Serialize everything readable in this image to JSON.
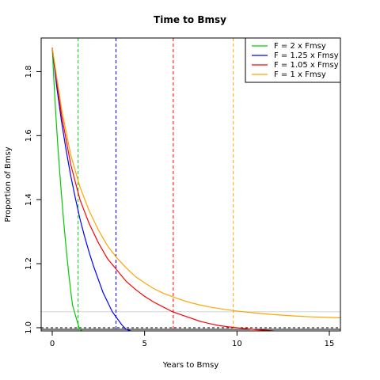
{
  "chart_data": {
    "type": "line",
    "title": "Time to Bmsy",
    "xlabel": "Years to Bmsy",
    "ylabel": "Proportion of Bmsy",
    "xlim": [
      -0.6,
      15.6
    ],
    "ylim": [
      0.99,
      1.905
    ],
    "x_ticks": [
      0,
      5,
      10,
      15
    ],
    "y_ticks": [
      1.0,
      1.2,
      1.4,
      1.6,
      1.8
    ],
    "x_tick_labels": [
      "0",
      "5",
      "10",
      "15"
    ],
    "y_tick_labels": [
      "1.0",
      "1.2",
      "1.4",
      "1.6",
      "1.8"
    ],
    "grid": false,
    "legend_position": "top-right",
    "series": [
      {
        "name": "F = 2 x Fmsy",
        "color": "#00cc00",
        "x": [
          0,
          0.1,
          0.2,
          0.3,
          0.4,
          0.5,
          0.6,
          0.7,
          0.8,
          0.9,
          1.0,
          1.1,
          1.2,
          1.3,
          1.4,
          1.5,
          1.6
        ],
        "y": [
          1.875,
          1.76,
          1.66,
          1.57,
          1.49,
          1.415,
          1.345,
          1.28,
          1.22,
          1.165,
          1.115,
          1.07,
          1.05,
          1.03,
          1.01,
          0.995,
          0.99
        ]
      },
      {
        "name": "F = 1.25 x Fmsy",
        "color": "#0000ff",
        "x": [
          0,
          0.25,
          0.5,
          0.75,
          1.0,
          1.25,
          1.5,
          1.75,
          2.0,
          2.25,
          2.5,
          2.75,
          3.0,
          3.25,
          3.5,
          3.75,
          4.0,
          4.25
        ],
        "y": [
          1.875,
          1.75,
          1.645,
          1.555,
          1.475,
          1.405,
          1.34,
          1.285,
          1.235,
          1.19,
          1.15,
          1.11,
          1.08,
          1.05,
          1.03,
          1.01,
          0.995,
          0.99
        ]
      },
      {
        "name": "F = 1.05 x Fmsy",
        "color": "#ff0000",
        "x": [
          0,
          0.5,
          1,
          1.5,
          2,
          2.5,
          3,
          3.5,
          4,
          4.5,
          5,
          5.5,
          6,
          6.5,
          7,
          7.5,
          8,
          8.5,
          9,
          9.5,
          10,
          10.5,
          11,
          11.5,
          12
        ],
        "y": [
          1.875,
          1.665,
          1.51,
          1.4,
          1.325,
          1.265,
          1.215,
          1.18,
          1.145,
          1.12,
          1.098,
          1.08,
          1.065,
          1.05,
          1.04,
          1.03,
          1.02,
          1.013,
          1.007,
          1.003,
          1.0,
          0.997,
          0.994,
          0.992,
          0.99
        ]
      },
      {
        "name": "F = 1 x Fmsy",
        "color": "#ffa500",
        "x": [
          0,
          0.5,
          1,
          1.5,
          2,
          2.5,
          3,
          3.5,
          4,
          4.5,
          5,
          5.5,
          6,
          6.5,
          7,
          7.5,
          8,
          8.5,
          9,
          9.5,
          10,
          11,
          12,
          13,
          14,
          15,
          15.6
        ],
        "y": [
          1.875,
          1.685,
          1.54,
          1.44,
          1.365,
          1.305,
          1.255,
          1.218,
          1.187,
          1.16,
          1.14,
          1.122,
          1.108,
          1.097,
          1.087,
          1.078,
          1.071,
          1.065,
          1.06,
          1.056,
          1.052,
          1.046,
          1.041,
          1.037,
          1.034,
          1.032,
          1.031
        ]
      }
    ],
    "vertical_lines": [
      {
        "x": 1.4,
        "color": "#00cc00",
        "dash": true
      },
      {
        "x": 3.45,
        "color": "#0000ff",
        "dash": true
      },
      {
        "x": 6.55,
        "color": "#ff0000",
        "dash": true
      },
      {
        "x": 9.8,
        "color": "#ffa500",
        "dash": true
      }
    ],
    "horizontal_lines": [
      {
        "y": 1.05,
        "color": "#d3d3d3",
        "dash": false
      },
      {
        "y": 1.0,
        "color": "#000000",
        "dash": true
      },
      {
        "y": 0.995,
        "color": "#000000",
        "dash": false
      }
    ]
  }
}
